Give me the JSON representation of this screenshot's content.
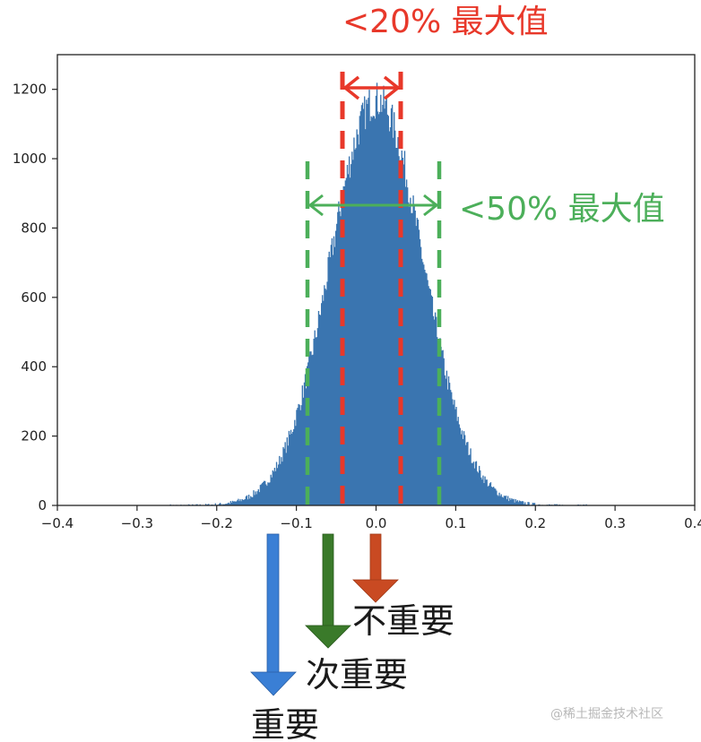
{
  "chart_data": {
    "type": "bar",
    "subtype": "histogram",
    "title": "",
    "xlabel": "",
    "ylabel": "",
    "xlim": [
      -0.4,
      0.4
    ],
    "ylim": [
      0,
      1300
    ],
    "grid": false,
    "x_ticks": [
      "-0.4",
      "-0.3",
      "-0.2",
      "-0.1",
      "0.0",
      "0.1",
      "0.2",
      "0.3",
      "0.4"
    ],
    "y_ticks": [
      "0",
      "200",
      "400",
      "600",
      "800",
      "1000",
      "1200"
    ],
    "distribution": {
      "shape": "approximately normal",
      "mean": 0.0,
      "std": 0.058,
      "peak_count": 1170,
      "support": [
        -0.26,
        0.27
      ]
    },
    "bar_color": "#3a75b0",
    "annotations": [
      {
        "id": "red",
        "label": "<20% 最大值",
        "color": "#e8382a",
        "x_left": -0.042,
        "x_right": 0.031,
        "style": "dashed",
        "arrow": "double"
      },
      {
        "id": "green",
        "label": "<50% 最大值",
        "color": "#4caf5a",
        "x_left": -0.086,
        "x_right": 0.08,
        "style": "dashed",
        "arrow": "double"
      }
    ]
  },
  "labels": {
    "red_band": "<20% 最大值",
    "green_band": "<50% 最大值",
    "important": "重要",
    "secondary": "次重要",
    "unimportant": "不重要",
    "watermark": "@稀土掘金技术社区"
  },
  "colors": {
    "red": "#e8382a",
    "green": "#4caf5a",
    "bar": "#3a75b0",
    "arrow_blue": "#3a7fd5",
    "arrow_green": "#3a7a2a",
    "arrow_orange": "#c94a22"
  }
}
